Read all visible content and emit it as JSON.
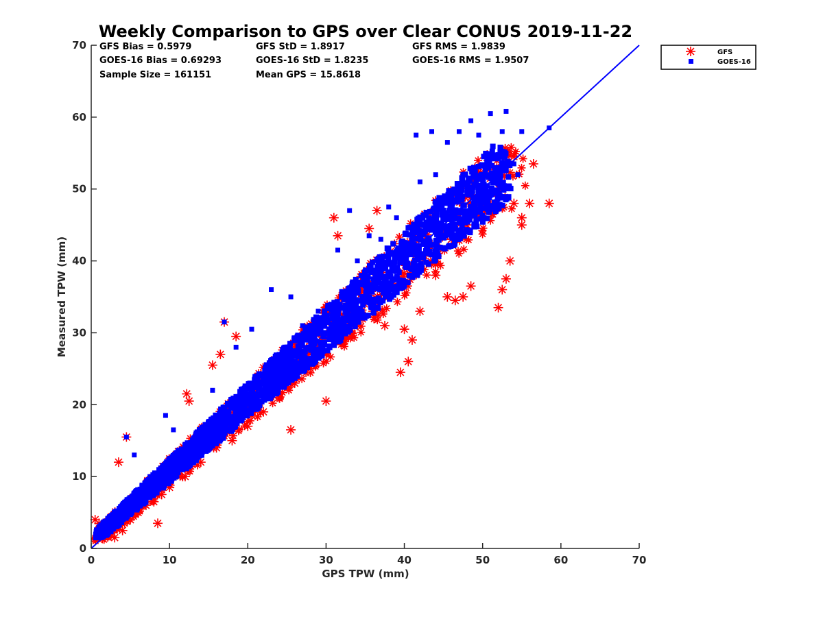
{
  "chart_data": {
    "type": "scatter",
    "title": "Weekly Comparison to GPS over Clear CONUS 2019-11-22",
    "xlabel": "GPS TPW (mm)",
    "ylabel": "Measured TPW (mm)",
    "xlim": [
      0,
      70
    ],
    "ylim": [
      0,
      70
    ],
    "xticks": [
      "0",
      "10",
      "20",
      "30",
      "40",
      "50",
      "60",
      "70"
    ],
    "yticks": [
      "0",
      "10",
      "20",
      "30",
      "40",
      "50",
      "60",
      "70"
    ],
    "grid": false,
    "legend_position": "outside-top-right",
    "stats": [
      [
        "GFS Bias = 0.5979",
        "GFS StD = 1.8917",
        "GFS RMS = 1.9839"
      ],
      [
        "GOES-16 Bias = 0.69293",
        "GOES-16 StD = 1.8235",
        "GOES-16 RMS = 1.9507"
      ],
      [
        "Sample Size = 161151",
        "Mean GPS = 15.8618",
        ""
      ]
    ],
    "reference_line": {
      "name": "1:1",
      "x": [
        0,
        70
      ],
      "y": [
        0,
        70
      ],
      "color": "#0000ff"
    },
    "series": [
      {
        "name": "GFS",
        "marker": "asterisk",
        "color": "#ff0000",
        "x": [
          0.5,
          1,
          1.5,
          2,
          2.5,
          3,
          4,
          5,
          6,
          7,
          8,
          9,
          10,
          12,
          14,
          16,
          18,
          20,
          22,
          24,
          26,
          28,
          30,
          32,
          34,
          36,
          38,
          40,
          42,
          44,
          46,
          48,
          50,
          52,
          54,
          55,
          3.5,
          4.5,
          8.5,
          12.2,
          12.5,
          17,
          15.5,
          18.5,
          16.5,
          25.5,
          27.5,
          29.5,
          31,
          31.5,
          35.5,
          36.5,
          39.5,
          40.5,
          41,
          42,
          45.5,
          47.5,
          50,
          52,
          52.5,
          53,
          53.5,
          55,
          56,
          56.5,
          58.5,
          46.5,
          48.5,
          51,
          54,
          33,
          37.5,
          28.5,
          30,
          23,
          20.5,
          19.5,
          26,
          40,
          44,
          34.5
        ],
        "y": [
          4,
          3.5,
          2.5,
          2.2,
          1.8,
          1.5,
          2.5,
          4,
          5,
          6,
          6.5,
          7.5,
          8.5,
          10,
          12,
          14,
          15,
          17,
          19,
          21,
          23,
          25,
          27,
          29,
          31,
          33,
          35,
          37,
          39,
          41,
          43,
          45,
          47,
          49,
          48,
          46,
          12,
          15.5,
          3.5,
          21.5,
          20.5,
          31.5,
          25.5,
          29.5,
          27,
          16.5,
          27.5,
          29.5,
          46,
          43.5,
          44.5,
          47,
          24.5,
          26,
          29,
          33,
          35,
          35,
          50,
          33.5,
          36,
          37.5,
          40,
          45,
          48,
          53.5,
          48,
          34.5,
          36.5,
          51.5,
          54.5,
          32,
          31,
          28.5,
          20.5,
          22.5,
          18.5,
          19.5,
          28,
          30.5,
          38,
          36
        ]
      },
      {
        "name": "GOES-16",
        "marker": "square",
        "color": "#0000ff",
        "x": [
          1,
          2,
          3,
          4,
          5,
          6,
          7,
          8,
          9,
          10,
          11,
          12,
          13,
          14,
          15,
          16,
          17,
          18,
          19,
          20,
          21,
          22,
          23,
          24,
          25,
          26,
          27,
          28,
          29,
          30,
          31,
          32,
          33,
          34,
          35,
          36,
          37,
          38,
          39,
          40,
          41,
          42,
          43,
          44,
          45,
          46,
          47,
          48,
          49,
          50,
          51,
          52,
          53,
          54,
          4.5,
          5.5,
          9.5,
          10.5,
          15.5,
          17,
          18.5,
          20.5,
          23,
          25.5,
          27,
          31.5,
          33,
          35.5,
          38,
          41.5,
          43.5,
          45.5,
          47,
          48.5,
          49.5,
          51,
          52.5,
          53,
          55,
          58.5,
          54.5,
          44,
          42,
          39,
          37,
          34,
          29,
          26,
          24,
          22,
          19,
          16,
          13,
          11,
          8,
          6,
          3,
          2.5,
          7.5,
          12.5
        ],
        "y": [
          3,
          3.5,
          4.5,
          5.5,
          6.5,
          7.5,
          8.5,
          9.5,
          10.5,
          11.5,
          12.5,
          13.5,
          14.5,
          15.5,
          16.5,
          17.5,
          18.5,
          19.5,
          20.5,
          21.5,
          22.5,
          23.5,
          24.5,
          25.5,
          26.5,
          27.5,
          28.5,
          29.5,
          30.5,
          31.5,
          32.5,
          33.5,
          34.5,
          35.5,
          36.5,
          37.5,
          38.5,
          39.5,
          40.5,
          41.5,
          42.5,
          43.5,
          44.5,
          45.5,
          46.5,
          47.5,
          48.5,
          49.5,
          50.5,
          51,
          52,
          53,
          52.5,
          53.5,
          15.5,
          13,
          18.5,
          16.5,
          22,
          31.5,
          28,
          30.5,
          36,
          35,
          31,
          41.5,
          47,
          43.5,
          47.5,
          57.5,
          58,
          56.5,
          58,
          59.5,
          57.5,
          60.5,
          58,
          60.8,
          58,
          58.5,
          52,
          52,
          51,
          46,
          43,
          40,
          33,
          29,
          27,
          24,
          21,
          18,
          15,
          12,
          9,
          7,
          5,
          4,
          10,
          14
        ]
      }
    ]
  }
}
